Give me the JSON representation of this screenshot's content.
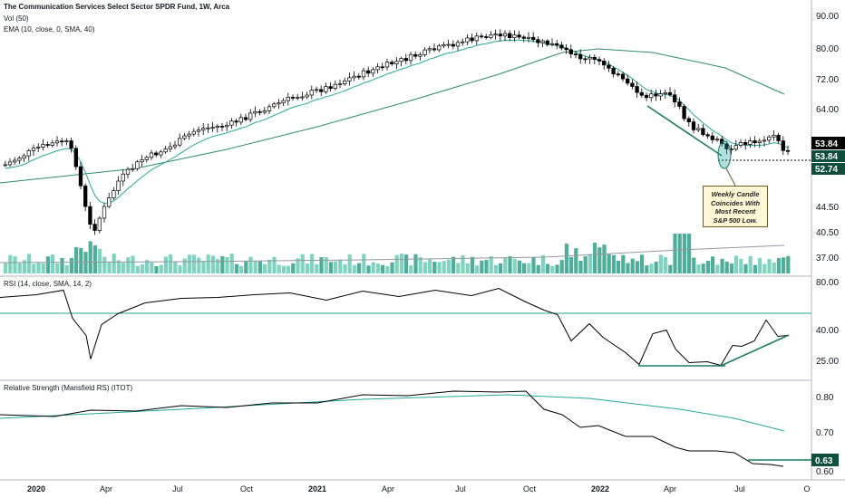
{
  "header": {
    "title": "The Communication Services Select Sector SPDR Fund, 1W, Arca",
    "vol": "Vol (50)",
    "ema": "EMA (10, close, 0, SMA, 40)",
    "rsi": "RSI (14, close, SMA, 14, 2)",
    "rs": "Relative Strength (Mansfield RS) (ITOT)"
  },
  "annotation": {
    "line1": "Weekly Candle",
    "line2": "Coincides With",
    "line3": "Most Recent",
    "line4": "S&P 500 Low."
  },
  "colors": {
    "up": "#ffffff",
    "down": "#000000",
    "ema": "#26a69a",
    "sma": "#2e8b6e",
    "volume": "#7fd3bf",
    "volume_dark": "#4fae9a",
    "trendline": "#1e7b62",
    "last_price": "#000000",
    "current_price": "#0f4d3c"
  },
  "chart_data": [
    {
      "type": "candlestick",
      "name": "price",
      "y_ticks": [
        "90.00",
        "80.00",
        "72.00",
        "64.00",
        "53.84",
        "53.84",
        "52.74",
        "44.50",
        "40.50",
        "37.00"
      ],
      "last_price": "53.84",
      "current_price": "53.84",
      "level_price": "52.74",
      "x_labels": [
        "2020",
        "Apr",
        "Jul",
        "Oct",
        "2021",
        "Apr",
        "Jul",
        "Oct",
        "2022",
        "Apr",
        "Jul",
        "O"
      ]
    },
    {
      "type": "line",
      "name": "RSI",
      "y_ticks": [
        "80.00",
        "40.00",
        "25.00"
      ]
    },
    {
      "type": "line",
      "name": "Relative Strength",
      "y_ticks": [
        "0.80",
        "0.70",
        "0.63",
        "0.60"
      ],
      "last_value": "0.63"
    }
  ]
}
